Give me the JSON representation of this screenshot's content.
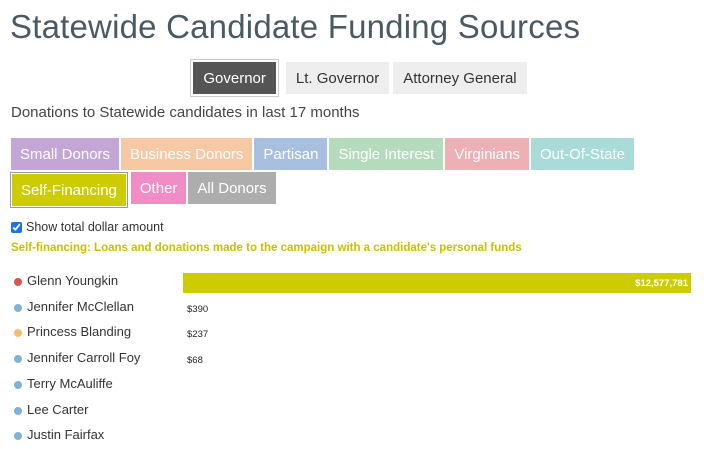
{
  "title": "Statewide Candidate Funding Sources",
  "tabs": [
    {
      "label": "Governor",
      "active": true
    },
    {
      "label": "Lt. Governor",
      "active": false
    },
    {
      "label": "Attorney General",
      "active": false
    }
  ],
  "subtitle": "Donations to Statewide candidates in last 17 months",
  "categories": [
    {
      "label": "Small Donors",
      "color": "#c3a6d6"
    },
    {
      "label": "Business Donors",
      "color": "#f7c8a4"
    },
    {
      "label": "Partisan",
      "color": "#a8bfe0"
    },
    {
      "label": "Single Interest",
      "color": "#b4dcbc"
    },
    {
      "label": "Virginians",
      "color": "#efb0b5"
    },
    {
      "label": "Out-Of-State",
      "color": "#a9dcd8"
    },
    {
      "label": "Self-Financing",
      "color": "#cccc00",
      "active": true
    },
    {
      "label": "Other",
      "color": "#f28cc6"
    },
    {
      "label": "All Donors",
      "color": "#adadad"
    }
  ],
  "show_total_label": "Show total dollar amount",
  "show_total_checked": true,
  "note": "Self-financing: Loans and donations made to the campaign with a candidate's personal funds",
  "bar_color": "#cccc00",
  "chart_data": {
    "type": "bar",
    "orientation": "horizontal",
    "categories": [
      "Glenn Youngkin",
      "Jennifer McClellan",
      "Princess Blanding",
      "Jennifer Carroll Foy",
      "Terry McAuliffe",
      "Lee Carter",
      "Justin Fairfax"
    ],
    "values": [
      12577781,
      390,
      237,
      68,
      0,
      0,
      0
    ],
    "value_labels": [
      "$12,577,781",
      "$390",
      "$237",
      "$68",
      "",
      "",
      ""
    ],
    "party_colors": [
      "#d9534f",
      "#7fb3d5",
      "#f0c070",
      "#7fb3d5",
      "#7fb3d5",
      "#7fb3d5",
      "#7fb3d5"
    ],
    "xlim": [
      0,
      12577781
    ]
  }
}
